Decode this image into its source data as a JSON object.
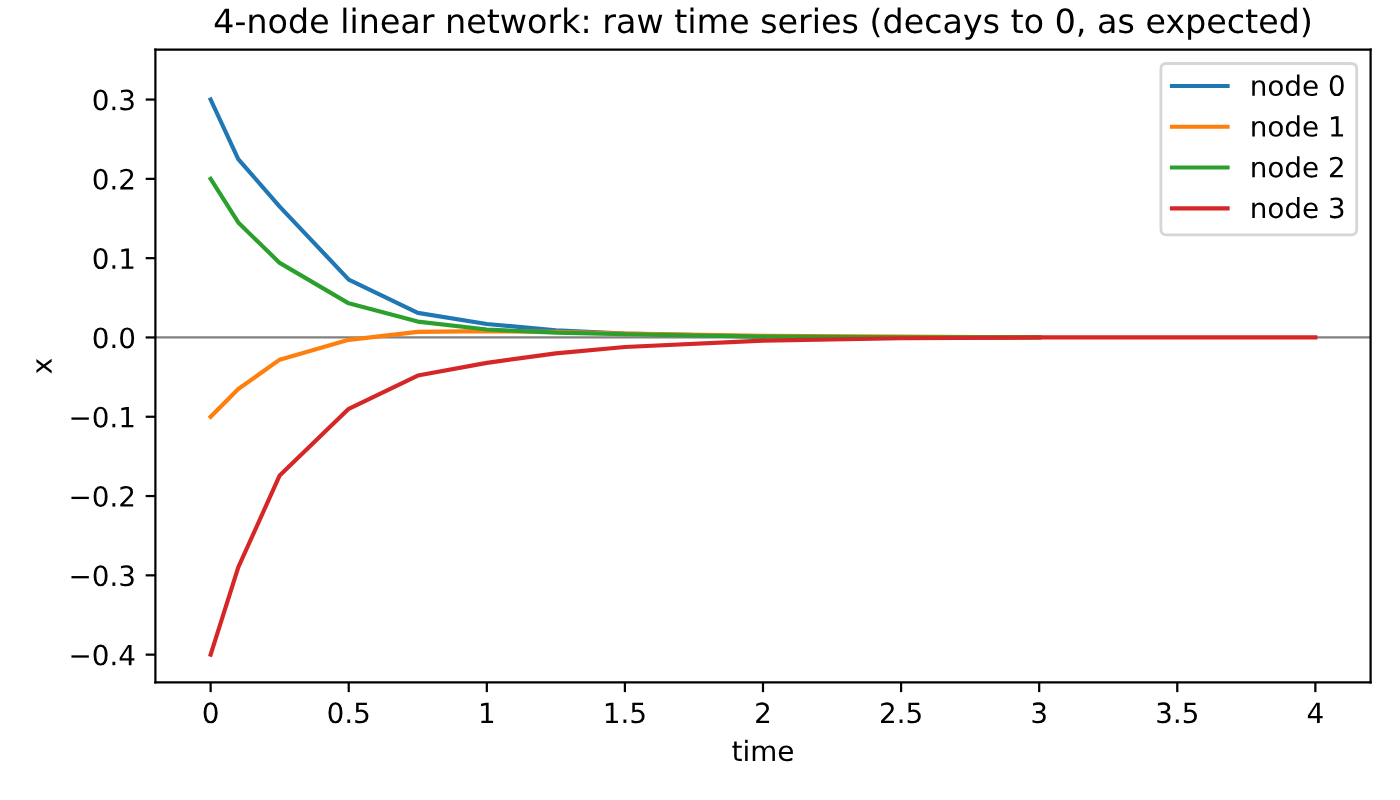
{
  "chart_data": {
    "type": "line",
    "title": "4-node linear network: raw time series (decays to 0, as expected)",
    "xlabel": "time",
    "ylabel": "x",
    "x": [
      0,
      0.1,
      0.25,
      0.5,
      0.75,
      1,
      1.25,
      1.5,
      2,
      2.5,
      3,
      3.5,
      4
    ],
    "series": [
      {
        "name": "node 0",
        "color": "#1f77b4",
        "values": [
          0.3,
          0.225,
          0.165,
          0.073,
          0.031,
          0.017,
          0.009,
          0.005,
          0.001,
          null,
          null,
          null,
          null
        ]
      },
      {
        "name": "node 1",
        "color": "#ff7f0e",
        "values": [
          -0.1,
          -0.065,
          -0.028,
          -0.003,
          0.007,
          0.008,
          0.007,
          0.005,
          0.002,
          0.001,
          0,
          null,
          null
        ]
      },
      {
        "name": "node 2",
        "color": "#2ca02c",
        "values": [
          0.2,
          0.145,
          0.094,
          0.043,
          0.02,
          0.01,
          0.006,
          0.004,
          0.001,
          0,
          0,
          null,
          null
        ]
      },
      {
        "name": "node 3",
        "color": "#d62728",
        "values": [
          -0.4,
          -0.29,
          -0.174,
          -0.09,
          -0.048,
          -0.032,
          -0.02,
          -0.012,
          -0.004,
          -0.001,
          0,
          0,
          0
        ]
      }
    ],
    "xlim": [
      -0.2,
      4.2
    ],
    "ylim": [
      -0.435,
      0.363
    ],
    "xticks": [
      0,
      0.5,
      1,
      1.5,
      2,
      2.5,
      3,
      3.5,
      4
    ],
    "yticks": [
      {
        "value": -0.4,
        "label": "−0.4"
      },
      {
        "value": -0.3,
        "label": "−0.3"
      },
      {
        "value": -0.2,
        "label": "−0.2"
      },
      {
        "value": -0.1,
        "label": "−0.1"
      },
      {
        "value": 0,
        "label": "0.0"
      },
      {
        "value": 0.1,
        "label": "0.1"
      },
      {
        "value": 0.2,
        "label": "0.2"
      },
      {
        "value": 0.3,
        "label": "0.3"
      }
    ],
    "ref_lines": [
      {
        "axis": "y",
        "value": 0,
        "color": "#808080"
      }
    ],
    "legend": "top right",
    "grid": false
  }
}
